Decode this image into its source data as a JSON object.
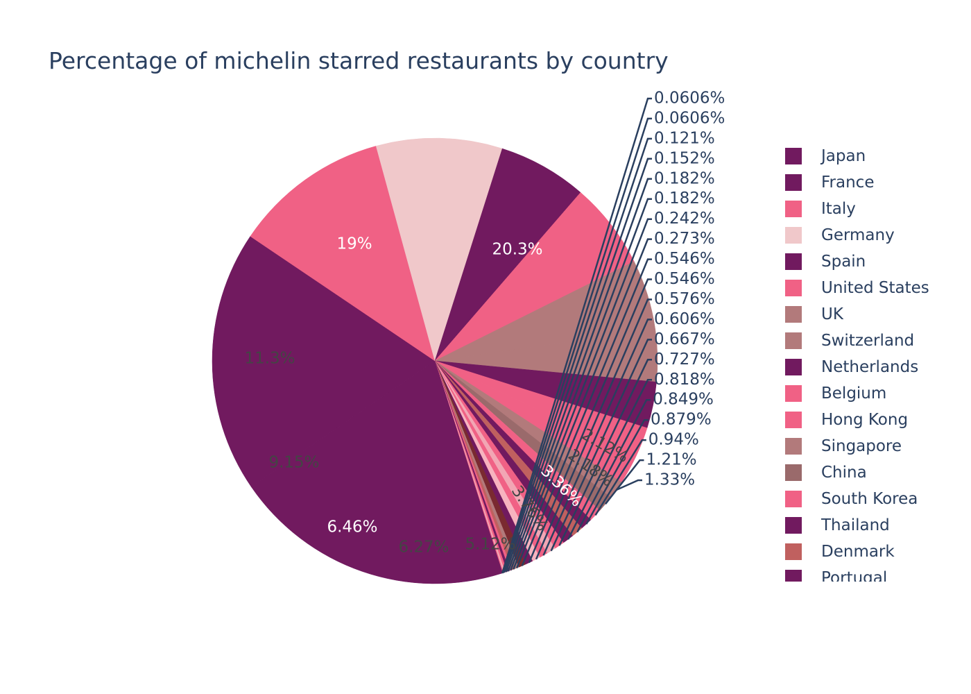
{
  "title": "Percentage of michelin starred restaurants by country",
  "chart_data": {
    "type": "pie",
    "title": "Percentage of michelin starred restaurants by country",
    "legend_position": "right",
    "direction": "clockwise",
    "slices": [
      {
        "label": "Japan",
        "value": 20.3,
        "text": "20.3%",
        "color": "#711A5F"
      },
      {
        "label": "France",
        "value": 19.0,
        "text": "19%",
        "color": "#711A5F"
      },
      {
        "label": "Italy",
        "value": 11.3,
        "text": "11.3%",
        "color": "#F06185"
      },
      {
        "label": "Germany",
        "value": 9.15,
        "text": "9.15%",
        "color": "#F0C8CA"
      },
      {
        "label": "Spain",
        "value": 6.46,
        "text": "6.46%",
        "color": "#711A5F"
      },
      {
        "label": "United States",
        "value": 6.27,
        "text": "6.27%",
        "color": "#F06185"
      },
      {
        "label": "UK",
        "value": 5.12,
        "text": "5.12%",
        "color": "#B27A7B"
      },
      {
        "label": "Switzerland",
        "value": 3.76,
        "text": "3.76%",
        "color": "#B27A7B"
      },
      {
        "label": "Netherlands",
        "value": 3.36,
        "text": "3.36%",
        "color": "#711A5F"
      },
      {
        "label": "Belgium",
        "value": 2.18,
        "text": "2.18%",
        "color": "#F06185"
      },
      {
        "label": "Hong Kong",
        "value": 2.12,
        "text": "2.12%",
        "color": "#F06185"
      },
      {
        "label": "Singapore",
        "value": 1.33,
        "text": "1.33%",
        "color": "#B27A7B"
      },
      {
        "label": "China",
        "value": 1.21,
        "text": "1.21%",
        "color": "#9A6A6B"
      },
      {
        "label": "South Korea",
        "value": 0.94,
        "text": "0.94%",
        "color": "#F06185"
      },
      {
        "label": "Thailand",
        "value": 0.879,
        "text": "0.879%",
        "color": "#711A5F"
      },
      {
        "label": "Denmark",
        "value": 0.849,
        "text": "0.849%",
        "color": "#C0605F"
      },
      {
        "label": "Portugal",
        "value": 0.818,
        "text": "0.818%",
        "color": "#711A5F"
      },
      {
        "label": "",
        "value": 0.727,
        "text": "0.727%",
        "color": "#F06185"
      },
      {
        "label": "",
        "value": 0.667,
        "text": "0.667%",
        "color": "#F2A6B4"
      },
      {
        "label": "",
        "value": 0.606,
        "text": "0.606%",
        "color": "#F06185"
      },
      {
        "label": "",
        "value": 0.576,
        "text": "0.576%",
        "color": "#F7B3BF"
      },
      {
        "label": "",
        "value": 0.546,
        "text": "0.546%",
        "color": "#711A5F"
      },
      {
        "label": "",
        "value": 0.546,
        "text": "0.546%",
        "color": "#7A2A30"
      },
      {
        "label": "",
        "value": 0.273,
        "text": "0.273%",
        "color": "#B27A7B"
      },
      {
        "label": "",
        "value": 0.242,
        "text": "0.242%",
        "color": "#C0605F"
      },
      {
        "label": "",
        "value": 0.182,
        "text": "0.182%",
        "color": "#F06185"
      },
      {
        "label": "",
        "value": 0.182,
        "text": "0.182%",
        "color": "#711A5F"
      },
      {
        "label": "",
        "value": 0.152,
        "text": "0.152%",
        "color": "#F06185"
      },
      {
        "label": "",
        "value": 0.121,
        "text": "0.121%",
        "color": "#F2A6B4"
      },
      {
        "label": "",
        "value": 0.0606,
        "text": "0.0606%",
        "color": "#F06185"
      },
      {
        "label": "",
        "value": 0.0606,
        "text": "0.0606%",
        "color": "#711A5F"
      }
    ],
    "inside_text_colors": {
      "light": "#ffffff",
      "dark": "#444444"
    },
    "outside_text_color": "#2a3f5f"
  }
}
